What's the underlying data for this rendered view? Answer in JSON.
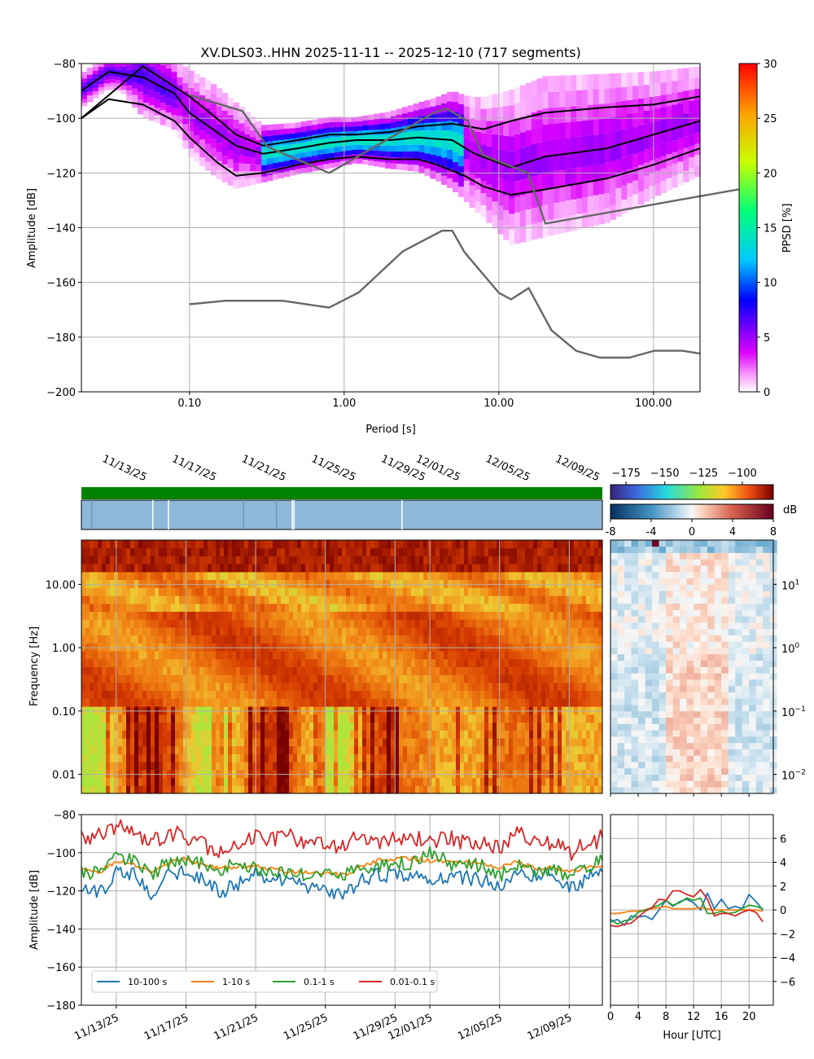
{
  "figure": {
    "title": "XV.DLS03..HHN   2025-11-11 -- 2025-12-10  (717 segments)"
  },
  "chart_data": [
    {
      "id": "ppsd",
      "type": "heatmap",
      "title": "XV.DLS03..HHN   2025-11-11 -- 2025-12-10  (717 segments)",
      "xlabel": "Period [s]",
      "ylabel": "Amplitude [dB]",
      "xscale": "log",
      "xlim": [
        0.02,
        200
      ],
      "ylim": [
        -200,
        -80
      ],
      "xticks": [
        0.1,
        1,
        10,
        100
      ],
      "xtick_labels": [
        "0.10",
        "1.00",
        "10.00",
        "100.00"
      ],
      "yticks": [
        -200,
        -180,
        -160,
        -140,
        -120,
        -100,
        -80
      ],
      "ytick_labels": [
        "−200",
        "−180",
        "−160",
        "−140",
        "−120",
        "−100",
        "−80"
      ],
      "colorbar": {
        "label": "PPSD [%]",
        "range": [
          0,
          30
        ],
        "ticks": [
          0,
          5,
          10,
          15,
          20,
          25,
          30
        ],
        "tick_labels": [
          "0",
          "5",
          "10",
          "15",
          "20",
          "25",
          "30"
        ]
      },
      "series": [
        {
          "name": "percentile-high",
          "color": "#000000",
          "x": [
            0.02,
            0.05,
            0.1,
            0.15,
            0.2,
            0.3,
            0.5,
            0.8,
            1.2,
            2,
            3,
            5,
            8,
            12,
            20,
            50,
            100,
            200
          ],
          "y": [
            -100,
            -81,
            -92,
            -100,
            -106,
            -110,
            -108,
            -106,
            -106,
            -105,
            -103,
            -102,
            -104,
            -101,
            -98,
            -96,
            -95,
            -92
          ]
        },
        {
          "name": "mode",
          "color": "#000000",
          "x": [
            0.02,
            0.03,
            0.05,
            0.08,
            0.1,
            0.15,
            0.2,
            0.3,
            0.5,
            0.8,
            1.2,
            2,
            3,
            5,
            7,
            12,
            20,
            50,
            100,
            200
          ],
          "y": [
            -90,
            -83,
            -85,
            -91,
            -98,
            -105,
            -110,
            -113,
            -111,
            -109,
            -108,
            -108,
            -107,
            -108,
            -113,
            -118,
            -114,
            -111,
            -106,
            -101
          ]
        },
        {
          "name": "percentile-low",
          "color": "#000000",
          "x": [
            0.02,
            0.03,
            0.05,
            0.08,
            0.1,
            0.15,
            0.2,
            0.3,
            0.5,
            0.8,
            1.2,
            2,
            3,
            4,
            6,
            8,
            12,
            20,
            50,
            100,
            200
          ],
          "y": [
            -100,
            -93,
            -95,
            -101,
            -107,
            -116,
            -121,
            -120,
            -117,
            -115,
            -114,
            -115,
            -115,
            -117,
            -121,
            -125,
            -128,
            -126,
            -122,
            -117,
            -111
          ]
        },
        {
          "name": "NHNM",
          "color": "#666666",
          "x": [
            0.1,
            0.22,
            0.32,
            0.8,
            3.8,
            4.6,
            6.3,
            7.9,
            15.4,
            20,
            354.8
          ],
          "y": [
            -91.5,
            -97.4,
            -110.5,
            -120,
            -98,
            -96.5,
            -101,
            -113.5,
            -120,
            -138.5,
            -126
          ]
        },
        {
          "name": "NLNM",
          "color": "#666666",
          "x": [
            0.1,
            0.17,
            0.4,
            0.8,
            1.24,
            2.4,
            4.3,
            5,
            6,
            10,
            12,
            15.6,
            21.9,
            31.6,
            45,
            70,
            101,
            154,
            200
          ],
          "y": [
            -168,
            -166.7,
            -166.7,
            -169.2,
            -163.7,
            -148.6,
            -141.1,
            -141.1,
            -149,
            -163.8,
            -166.2,
            -162.1,
            -177.5,
            -185,
            -187.5,
            -187.5,
            -185,
            -185,
            -186
          ]
        }
      ]
    },
    {
      "id": "availability",
      "type": "bar",
      "title": "",
      "segments_color": "#008000",
      "gaps_at_days": [
        4.1,
        5.0,
        12.1,
        12.2,
        18.4
      ]
    },
    {
      "id": "spectrogram",
      "type": "heatmap",
      "xlabel": "",
      "ylabel": "Frequency [Hz]",
      "yscale": "log",
      "ylim": [
        0.005,
        50
      ],
      "yticks": [
        0.01,
        0.1,
        1,
        10
      ],
      "ytick_labels": [
        "0.01",
        "0.10",
        "1.00",
        "10.00"
      ],
      "date_ticks": [
        "11/13/25",
        "11/17/25",
        "11/21/25",
        "11/25/25",
        "11/29/25",
        "12/01/25",
        "12/05/25",
        "12/09/25"
      ],
      "date_tick_days": [
        2,
        6,
        10,
        14,
        18,
        20,
        24,
        28
      ],
      "date_range_days": [
        0,
        29.9
      ],
      "colorbar": {
        "range": [
          -185,
          -80
        ],
        "ticks": [
          -175,
          -150,
          -125,
          -100
        ],
        "tick_labels": [
          "−175",
          "−150",
          "−125",
          "−100"
        ]
      }
    },
    {
      "id": "diurnal",
      "type": "heatmap",
      "colorbar": {
        "label": "dB",
        "range": [
          -8,
          8
        ],
        "ticks": [
          -8,
          -4,
          0,
          4,
          8
        ],
        "tick_labels": [
          "-8",
          "-4",
          "0",
          "4",
          "8"
        ]
      },
      "yticks": [
        0.01,
        0.1,
        1,
        10
      ],
      "ytick_labels": [
        "10",
        "10",
        "10",
        "10"
      ],
      "ytick_exponents": [
        "−2",
        "−1",
        "0",
        "1"
      ]
    },
    {
      "id": "band-timeseries",
      "type": "line",
      "ylabel": "Amplitude [dB]",
      "ylim": [
        -180,
        -80
      ],
      "yticks": [
        -180,
        -160,
        -140,
        -120,
        -100,
        -80
      ],
      "ytick_labels": [
        "−180",
        "−160",
        "−140",
        "−120",
        "−100",
        "−80"
      ],
      "date_ticks": [
        "11/13/25",
        "11/17/25",
        "11/21/25",
        "11/25/25",
        "11/29/25",
        "12/01/25",
        "12/05/25",
        "12/09/25"
      ],
      "legend": {
        "location": "bottom-left"
      },
      "series": [
        {
          "name": "10-100 s",
          "color": "#1f77b4",
          "x": [
            0,
            1,
            2,
            3,
            4,
            5,
            6,
            7,
            8,
            9,
            10,
            11,
            12,
            13,
            14,
            15,
            16,
            17,
            18,
            19,
            20,
            21,
            22,
            23,
            24,
            25,
            26,
            27,
            28,
            29,
            29.9
          ],
          "y": [
            -118,
            -122,
            -110,
            -111,
            -123,
            -112,
            -108,
            -115,
            -120,
            -117,
            -110,
            -114,
            -113,
            -120,
            -118,
            -123,
            -115,
            -112,
            -111,
            -113,
            -113,
            -112,
            -113,
            -114,
            -118,
            -110,
            -113,
            -111,
            -119,
            -113,
            -110
          ]
        },
        {
          "name": "1-10 s",
          "color": "#ff7f0e",
          "x": [
            0,
            1,
            2,
            3,
            4,
            5,
            6,
            7,
            8,
            9,
            10,
            11,
            12,
            13,
            14,
            15,
            16,
            17,
            18,
            19,
            20,
            21,
            22,
            23,
            24,
            25,
            26,
            27,
            28,
            29,
            29.9
          ],
          "y": [
            -109,
            -110,
            -105,
            -106,
            -110,
            -105,
            -103,
            -107,
            -108,
            -107,
            -107,
            -109,
            -110,
            -110,
            -110,
            -112,
            -108,
            -104,
            -103,
            -103,
            -104,
            -105,
            -105,
            -106,
            -108,
            -105,
            -108,
            -108,
            -110,
            -108,
            -107
          ]
        },
        {
          "name": "0.1-1 s",
          "color": "#2ca02c",
          "x": [
            0,
            1,
            2,
            3,
            4,
            5,
            6,
            7,
            8,
            9,
            10,
            11,
            12,
            13,
            14,
            15,
            16,
            17,
            18,
            19,
            20,
            21,
            22,
            23,
            24,
            25,
            26,
            27,
            28,
            29,
            29.9
          ],
          "y": [
            -110,
            -111,
            -103,
            -104,
            -112,
            -105,
            -103,
            -106,
            -108,
            -107,
            -108,
            -109,
            -110,
            -111,
            -112,
            -113,
            -108,
            -106,
            -106,
            -106,
            -100,
            -105,
            -108,
            -106,
            -112,
            -106,
            -110,
            -108,
            -113,
            -108,
            -104
          ]
        },
        {
          "name": "0.01-0.1 s",
          "color": "#d62728",
          "x": [
            0,
            1,
            2,
            3,
            4,
            5,
            6,
            7,
            8,
            9,
            10,
            11,
            12,
            13,
            14,
            15,
            16,
            17,
            18,
            19,
            20,
            21,
            22,
            23,
            24,
            25,
            26,
            27,
            28,
            29,
            29.9
          ],
          "y": [
            -92,
            -90,
            -86,
            -88,
            -95,
            -90,
            -91,
            -96,
            -100,
            -97,
            -91,
            -93,
            -92,
            -96,
            -94,
            -98,
            -90,
            -94,
            -91,
            -92,
            -94,
            -92,
            -95,
            -94,
            -97,
            -90,
            -93,
            -95,
            -100,
            -96,
            -92
          ]
        }
      ]
    },
    {
      "id": "hourly",
      "type": "line",
      "xlabel": "Hour [UTC]",
      "xlim": [
        0,
        23.5
      ],
      "ylim": [
        -8,
        8
      ],
      "xticks": [
        0,
        4,
        8,
        12,
        16,
        20
      ],
      "xtick_labels": [
        "0",
        "4",
        "8",
        "12",
        "16",
        "20"
      ],
      "yticks": [
        -6,
        -4,
        -2,
        0,
        2,
        4,
        6
      ],
      "ytick_labels": [
        "−6",
        "−4",
        "−2",
        "0",
        "2",
        "4",
        "6"
      ],
      "series": [
        {
          "name": "10-100 s",
          "color": "#1f77b4",
          "x": [
            0,
            1,
            2,
            3,
            4,
            5,
            6,
            7,
            8,
            9,
            10,
            11,
            12,
            13,
            14,
            15,
            16,
            17,
            18,
            19,
            20,
            21,
            22
          ],
          "y": [
            -1.0,
            -0.8,
            -1.3,
            -0.5,
            -0.6,
            -0.5,
            -0.8,
            0.0,
            0.8,
            0.3,
            0.7,
            0.9,
            0.6,
            0.0,
            1.4,
            0.1,
            0.9,
            0.1,
            0.3,
            0.1,
            1.3,
            0.7,
            0.0
          ]
        },
        {
          "name": "1-10 s",
          "color": "#ff7f0e",
          "x": [
            0,
            1,
            2,
            3,
            4,
            5,
            6,
            7,
            8,
            9,
            10,
            11,
            12,
            13,
            14,
            15,
            16,
            17,
            18,
            19,
            20,
            21,
            22
          ],
          "y": [
            -0.3,
            -0.3,
            -0.2,
            -0.1,
            -0.1,
            0.0,
            0.1,
            0.2,
            0.3,
            0.1,
            0.1,
            0.1,
            0.1,
            0.2,
            0.1,
            0.0,
            0.0,
            0.0,
            0.0,
            0.0,
            0.0,
            0.0,
            -0.1
          ]
        },
        {
          "name": "0.1-1 s",
          "color": "#2ca02c",
          "x": [
            0,
            1,
            2,
            3,
            4,
            5,
            6,
            7,
            8,
            9,
            10,
            11,
            12,
            13,
            14,
            15,
            16,
            17,
            18,
            19,
            20,
            21,
            22
          ],
          "y": [
            -0.8,
            -1.2,
            -0.9,
            -0.8,
            -0.2,
            0.0,
            0.2,
            0.4,
            0.8,
            0.4,
            0.6,
            1.0,
            0.8,
            1.0,
            -0.3,
            -0.3,
            -0.1,
            -0.3,
            -0.2,
            0.1,
            0.4,
            0.3,
            0.1
          ]
        },
        {
          "name": "0.01-0.1 s",
          "color": "#d62728",
          "x": [
            0,
            1,
            2,
            3,
            4,
            5,
            6,
            7,
            8,
            9,
            10,
            11,
            12,
            13,
            14,
            15,
            16,
            17,
            18,
            19,
            20,
            21,
            22
          ],
          "y": [
            -1.3,
            -1.4,
            -1.2,
            -1.1,
            -0.6,
            -0.1,
            0.2,
            0.9,
            0.8,
            1.6,
            1.6,
            1.3,
            1.1,
            1.7,
            0.9,
            -0.5,
            -0.3,
            -0.3,
            -0.5,
            -0.2,
            0.0,
            -0.2,
            -1.0
          ]
        }
      ]
    }
  ]
}
